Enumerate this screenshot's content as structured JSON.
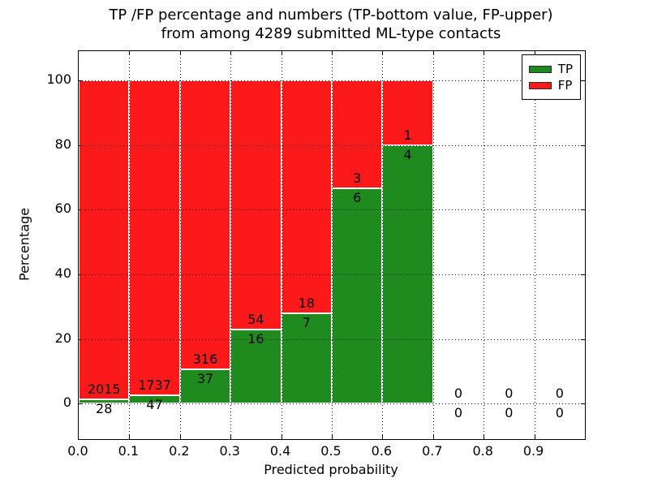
{
  "figure": {
    "title_line1": "TP /FP percentage and numbers (TP-bottom value, FP-upper)",
    "title_line2": "from among 4289 submitted ML-type contacts",
    "total_contacts": 4289
  },
  "chart_data": {
    "type": "bar",
    "stacked": true,
    "normalized_to_percent": true,
    "title": "TP /FP percentage and numbers (TP-bottom value, FP-upper) from among 4289 submitted ML-type contacts",
    "xlabel": "Predicted probability",
    "ylabel": "Percentage",
    "xlim": [
      0.0,
      1.0
    ],
    "ylim": [
      -11,
      109
    ],
    "grid": "dotted black, drawn above bars",
    "legend_position": "upper right",
    "xtick_labels": [
      "0.0",
      "0.1",
      "0.2",
      "0.3",
      "0.4",
      "0.5",
      "0.6",
      "0.7",
      "0.8",
      "0.9"
    ],
    "ytick_values": [
      0,
      20,
      40,
      60,
      80,
      100
    ],
    "ytick_labels": [
      "0",
      "20",
      "40",
      "60",
      "80",
      "100"
    ],
    "bar_width": 0.1,
    "bar_edge_color": "#ffffff",
    "series": [
      {
        "name": "TP",
        "color": "#1f8b1f",
        "position": "bottom"
      },
      {
        "name": "FP",
        "color": "#fb1919",
        "position": "top"
      }
    ],
    "bins": [
      {
        "x0": 0.0,
        "x1": 0.1,
        "tp": 28,
        "fp": 2015,
        "tp_pct": 1.37,
        "fp_pct": 98.63
      },
      {
        "x0": 0.1,
        "x1": 0.2,
        "tp": 47,
        "fp": 1737,
        "tp_pct": 2.63,
        "fp_pct": 97.37
      },
      {
        "x0": 0.2,
        "x1": 0.3,
        "tp": 37,
        "fp": 316,
        "tp_pct": 10.48,
        "fp_pct": 89.52
      },
      {
        "x0": 0.3,
        "x1": 0.4,
        "tp": 16,
        "fp": 54,
        "tp_pct": 22.86,
        "fp_pct": 77.14
      },
      {
        "x0": 0.4,
        "x1": 0.5,
        "tp": 7,
        "fp": 18,
        "tp_pct": 28.0,
        "fp_pct": 72.0
      },
      {
        "x0": 0.5,
        "x1": 0.6,
        "tp": 6,
        "fp": 3,
        "tp_pct": 66.67,
        "fp_pct": 33.33
      },
      {
        "x0": 0.6,
        "x1": 0.7,
        "tp": 4,
        "fp": 1,
        "tp_pct": 80.0,
        "fp_pct": 20.0
      },
      {
        "x0": 0.7,
        "x1": 0.8,
        "tp": 0,
        "fp": 0,
        "tp_pct": 0,
        "fp_pct": 0
      },
      {
        "x0": 0.8,
        "x1": 0.9,
        "tp": 0,
        "fp": 0,
        "tp_pct": 0,
        "fp_pct": 0
      },
      {
        "x0": 0.9,
        "x1": 1.0,
        "tp": 0,
        "fp": 0,
        "tp_pct": 0,
        "fp_pct": 0
      }
    ]
  },
  "legend": {
    "items": [
      {
        "label": "TP",
        "color": "#1f8b1f"
      },
      {
        "label": "FP",
        "color": "#fb1919"
      }
    ]
  },
  "axes": {
    "xlabel": "Predicted probability",
    "ylabel": "Percentage"
  }
}
